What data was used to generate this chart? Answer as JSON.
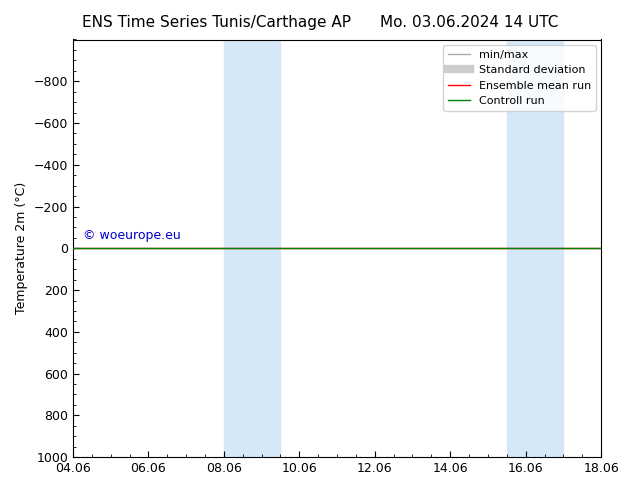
{
  "title_left": "ENS Time Series Tunis/Carthage AP",
  "title_right": "Mo. 03.06.2024 14 UTC",
  "ylabel": "Temperature 2m (°C)",
  "ylim": [
    -1000,
    1000
  ],
  "yticks": [
    -800,
    -600,
    -400,
    -200,
    0,
    200,
    400,
    600,
    800,
    1000
  ],
  "xtick_labels": [
    "04.06",
    "06.06",
    "08.06",
    "10.06",
    "12.06",
    "14.06",
    "16.06",
    "18.06"
  ],
  "xtick_positions": [
    0,
    2,
    4,
    6,
    8,
    10,
    12,
    14
  ],
  "shaded_regions": [
    {
      "x_start": 4.0,
      "x_end": 5.5
    },
    {
      "x_start": 11.5,
      "x_end": 13.0
    }
  ],
  "shaded_color": "#d6e8f7",
  "horizontal_line_y": 0,
  "line_green_color": "#008000",
  "line_red_color": "#ff0000",
  "watermark_text": "© woeurope.eu",
  "watermark_color": "#0000cc",
  "legend_entries": [
    {
      "label": "min/max",
      "color": "#aaaaaa",
      "lw": 1
    },
    {
      "label": "Standard deviation",
      "color": "#cccccc",
      "lw": 6
    },
    {
      "label": "Ensemble mean run",
      "color": "#ff0000",
      "lw": 1
    },
    {
      "label": "Controll run",
      "color": "#008000",
      "lw": 1
    }
  ],
  "background_color": "#ffffff",
  "plot_bg_color": "#ffffff",
  "font_size_title": 11,
  "font_size_legend": 8,
  "font_size_axis": 9,
  "font_size_watermark": 9
}
